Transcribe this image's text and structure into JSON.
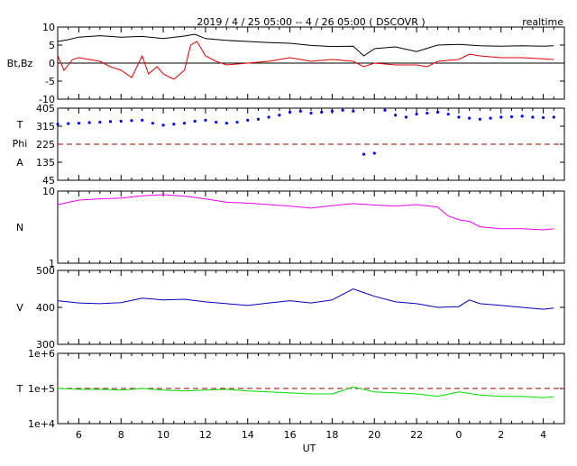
{
  "header": {
    "title": "2019 / 4 / 25   05:00 --  4 / 26   05:00 ( DSCOVR )",
    "badge": "realtime"
  },
  "xaxis": {
    "label": "UT",
    "tick_labels": [
      "6",
      "8",
      "10",
      "12",
      "14",
      "16",
      "18",
      "20",
      "22",
      "0",
      "2",
      "4"
    ],
    "tick_hours": [
      6,
      8,
      10,
      12,
      14,
      16,
      18,
      20,
      22,
      24,
      26,
      28
    ],
    "range_hours": [
      5,
      29
    ],
    "minor_every_hours": 0.5
  },
  "colors": {
    "frame": "#000000",
    "bt": "#000000",
    "bz": "#dd0000",
    "theta": "#0000aa",
    "phi": "#0000ff",
    "phi_ref": "#990000",
    "density": "#ee00ee",
    "speed": "#0000bb",
    "temperature": "#00dd00",
    "temp_ref": "#990000"
  },
  "chart_data": [
    {
      "type": "line",
      "panel": "field",
      "ylabel": "Bt,Bz",
      "ylim": [
        -10,
        10
      ],
      "ytick_labels": [
        "10",
        "5",
        "0",
        "-5",
        "-10"
      ],
      "ytick_values": [
        10,
        5,
        0,
        -5,
        -10
      ],
      "reference_line": 0,
      "series": [
        {
          "name": "Bt",
          "x": [
            5,
            5.5,
            6,
            7,
            8,
            9,
            10,
            11,
            11.5,
            12,
            13,
            14,
            15,
            16,
            17,
            18,
            19,
            19.5,
            20,
            21,
            22,
            23,
            24,
            25,
            26,
            27,
            28,
            28.5
          ],
          "y": [
            6,
            6.5,
            7.2,
            7.6,
            7.2,
            7.4,
            6.8,
            7.5,
            8,
            6.8,
            6.3,
            6,
            5.7,
            5.5,
            4.9,
            4.6,
            4.7,
            2,
            4,
            4.5,
            3.2,
            5,
            5.2,
            4.8,
            4.7,
            4.8,
            4.7,
            4.8
          ]
        },
        {
          "name": "Bz",
          "x": [
            5,
            5.3,
            5.7,
            6,
            6.5,
            7,
            7.5,
            8,
            8.5,
            9,
            9.3,
            9.7,
            10,
            10.5,
            11,
            11.3,
            11.6,
            12,
            12.5,
            13,
            14,
            15,
            16,
            17,
            18,
            19,
            19.5,
            20,
            21,
            22,
            22.5,
            23,
            24,
            24.5,
            25,
            26,
            27,
            28,
            28.5
          ],
          "y": [
            2,
            -2,
            1,
            1.5,
            1,
            0.5,
            -1,
            -2,
            -4,
            2,
            -3,
            -1,
            -3,
            -4.5,
            -2,
            5,
            6,
            2,
            0.5,
            -0.5,
            0,
            0.5,
            1.5,
            0.5,
            1,
            0.5,
            -1,
            0,
            -0.5,
            -0.5,
            -1,
            0.5,
            1,
            2.5,
            2,
            1.5,
            1.5,
            1.2,
            1
          ]
        }
      ]
    },
    {
      "type": "scatter",
      "panel": "angles",
      "ylabel_lines": [
        "T",
        "Phi",
        "A"
      ],
      "ylim": [
        45,
        405
      ],
      "ytick_labels": [
        "405",
        "315",
        "225",
        "135",
        "45"
      ],
      "ytick_values": [
        405,
        315,
        225,
        135,
        45
      ],
      "reference_line": 225,
      "series": [
        {
          "name": "Phi",
          "x": [
            5,
            5.5,
            6,
            6.5,
            7,
            7.5,
            8,
            8.5,
            9,
            9.5,
            10,
            10.5,
            11,
            11.5,
            12,
            12.5,
            13,
            13.5,
            14,
            14.5,
            15,
            15.5,
            16,
            16.5,
            17,
            17.5,
            18,
            18.5,
            19,
            19.5,
            20,
            20.5,
            21,
            21.5,
            22,
            22.5,
            23,
            23.5,
            24,
            24.5,
            25,
            25.5,
            26,
            26.5,
            27,
            27.5,
            28,
            28.5
          ],
          "y": [
            325,
            328,
            330,
            333,
            335,
            338,
            340,
            343,
            345,
            330,
            320,
            325,
            330,
            340,
            345,
            335,
            330,
            335,
            345,
            350,
            360,
            370,
            385,
            390,
            380,
            385,
            390,
            395,
            390,
            175,
            180,
            395,
            370,
            360,
            375,
            380,
            385,
            375,
            360,
            355,
            350,
            355,
            360,
            362,
            365,
            360,
            358,
            360
          ]
        }
      ]
    },
    {
      "type": "line",
      "panel": "density",
      "ylabel": "N",
      "log_scale": true,
      "ylim": [
        1,
        10
      ],
      "ytick_labels": [
        "10",
        "1"
      ],
      "ytick_values": [
        10,
        1
      ],
      "series": [
        {
          "name": "N",
          "x": [
            5,
            6,
            7,
            8,
            9,
            10,
            11,
            12,
            13,
            14,
            15,
            16,
            17,
            18,
            19,
            20,
            21,
            22,
            23,
            23.5,
            24,
            24.5,
            25,
            26,
            27,
            28,
            28.5
          ],
          "y": [
            6.5,
            7.5,
            7.8,
            8,
            8.6,
            8.9,
            8.5,
            7.8,
            7,
            6.8,
            6.5,
            6.2,
            5.8,
            6.3,
            6.7,
            6.4,
            6.2,
            6.5,
            6.0,
            4.5,
            4.0,
            3.8,
            3.2,
            3.0,
            3.0,
            2.9,
            3.0
          ]
        }
      ]
    },
    {
      "type": "line",
      "panel": "speed",
      "ylabel": "V",
      "ylim": [
        300,
        500
      ],
      "ytick_labels": [
        "500",
        "400",
        "300"
      ],
      "ytick_values": [
        500,
        400,
        300
      ],
      "series": [
        {
          "name": "V",
          "x": [
            5,
            6,
            7,
            8,
            9,
            10,
            11,
            12,
            13,
            14,
            15,
            16,
            17,
            18,
            18.5,
            19,
            19.5,
            20,
            21,
            22,
            23,
            24,
            24.5,
            25,
            26,
            27,
            28,
            28.5
          ],
          "y": [
            418,
            412,
            410,
            413,
            425,
            420,
            422,
            415,
            410,
            405,
            412,
            418,
            412,
            420,
            435,
            450,
            440,
            430,
            415,
            410,
            400,
            402,
            420,
            410,
            405,
            400,
            395,
            398
          ]
        }
      ]
    },
    {
      "type": "line",
      "panel": "temperature",
      "ylabel": "T",
      "log_scale": true,
      "ylim": [
        10000,
        1000000
      ],
      "ytick_labels": [
        "1e+6",
        "1e+5",
        "1e+4"
      ],
      "ytick_values": [
        1000000,
        100000,
        10000
      ],
      "reference_line": 100000,
      "series": [
        {
          "name": "T",
          "x": [
            5,
            6,
            7,
            8,
            9,
            10,
            11,
            12,
            13,
            14,
            15,
            16,
            17,
            18,
            19,
            20,
            21,
            22,
            23,
            24,
            25,
            26,
            27,
            28,
            28.5
          ],
          "y": [
            100000,
            95000,
            95000,
            90000,
            100000,
            90000,
            85000,
            90000,
            95000,
            85000,
            80000,
            75000,
            70000,
            70000,
            110000,
            80000,
            75000,
            70000,
            60000,
            80000,
            65000,
            60000,
            60000,
            55000,
            58000
          ]
        }
      ]
    }
  ]
}
